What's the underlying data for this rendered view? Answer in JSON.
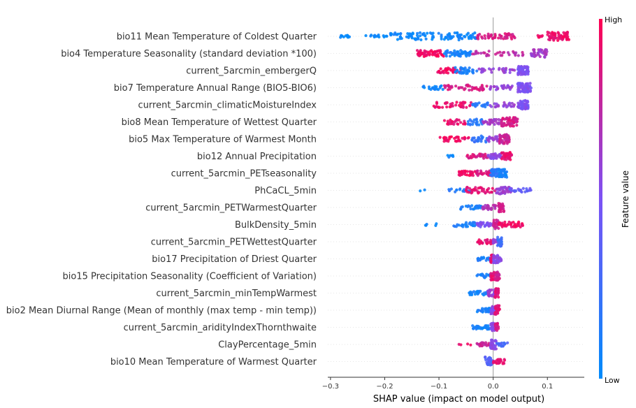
{
  "chart_data": {
    "type": "scatter",
    "subtype": "shap-beeswarm",
    "xlabel": "SHAP value (impact on model output)",
    "xlim": [
      -0.305,
      0.168
    ],
    "xticks": [
      -0.3,
      -0.2,
      -0.1,
      0.0,
      0.1
    ],
    "xtick_labels": [
      "−0.3",
      "−0.2",
      "−0.1",
      "0.0",
      "0.1"
    ],
    "zero_line": true,
    "colorbar": {
      "label": "Feature value",
      "high_label": "High",
      "low_label": "Low",
      "low_color": "#008bfb",
      "mid_color": "#7c52f5",
      "high_color": "#ff0052"
    },
    "features": [
      {
        "name": "bio11 Mean Temperature of Coldest Quarter",
        "clusters": [
          {
            "x": [
              -0.285,
              -0.265
            ],
            "color": 0.02,
            "n": 12,
            "spread": 0.25
          },
          {
            "x": [
              -0.235,
              -0.195
            ],
            "color": 0.03,
            "n": 14,
            "spread": 0.3
          },
          {
            "x": [
              -0.19,
              -0.03
            ],
            "color": 0.05,
            "n": 110,
            "spread": 0.65
          },
          {
            "x": [
              -0.03,
              0.04
            ],
            "color": 0.85,
            "n": 50,
            "spread": 0.5
          },
          {
            "x": [
              0.08,
              0.095
            ],
            "color": 0.95,
            "n": 6,
            "spread": 0.2
          },
          {
            "x": [
              0.1,
              0.14
            ],
            "color": 0.93,
            "n": 60,
            "spread": 0.75
          }
        ]
      },
      {
        "name": "bio4 Temperature Seasonality (standard deviation *100)",
        "clusters": [
          {
            "x": [
              -0.14,
              -0.09
            ],
            "color": 0.95,
            "n": 55,
            "spread": 0.55
          },
          {
            "x": [
              -0.09,
              -0.04
            ],
            "color": 0.1,
            "n": 50,
            "spread": 0.55
          },
          {
            "x": [
              -0.04,
              0.06
            ],
            "color": 0.75,
            "n": 35,
            "spread": 0.45
          },
          {
            "x": [
              0.07,
              0.1
            ],
            "color": 0.65,
            "n": 40,
            "spread": 0.7
          }
        ]
      },
      {
        "name": "current_5arcmin_embergerQ",
        "clusters": [
          {
            "x": [
              -0.105,
              -0.06
            ],
            "color": 0.95,
            "n": 35,
            "spread": 0.45
          },
          {
            "x": [
              -0.07,
              -0.03
            ],
            "color": 0.1,
            "n": 35,
            "spread": 0.55
          },
          {
            "x": [
              -0.03,
              0.04
            ],
            "color": 0.6,
            "n": 30,
            "spread": 0.4
          },
          {
            "x": [
              0.045,
              0.065
            ],
            "color": 0.5,
            "n": 60,
            "spread": 0.75
          }
        ]
      },
      {
        "name": "bio7 Temperature Annual Range (BIO5-BIO6)",
        "clusters": [
          {
            "x": [
              -0.13,
              -0.09
            ],
            "color": 0.05,
            "n": 20,
            "spread": 0.35
          },
          {
            "x": [
              -0.09,
              -0.01
            ],
            "color": 0.85,
            "n": 45,
            "spread": 0.5
          },
          {
            "x": [
              -0.01,
              0.04
            ],
            "color": 0.6,
            "n": 25,
            "spread": 0.4
          },
          {
            "x": [
              0.045,
              0.07
            ],
            "color": 0.5,
            "n": 65,
            "spread": 0.8
          }
        ]
      },
      {
        "name": "current_5arcmin_climaticMoistureIndex",
        "clusters": [
          {
            "x": [
              -0.11,
              -0.04
            ],
            "color": 0.92,
            "n": 40,
            "spread": 0.5
          },
          {
            "x": [
              -0.04,
              -0.01
            ],
            "color": 0.15,
            "n": 20,
            "spread": 0.45
          },
          {
            "x": [
              -0.01,
              0.04
            ],
            "color": 0.6,
            "n": 25,
            "spread": 0.4
          },
          {
            "x": [
              0.045,
              0.065
            ],
            "color": 0.5,
            "n": 55,
            "spread": 0.8
          }
        ]
      },
      {
        "name": "bio8 Mean Temperature of Wettest Quarter",
        "clusters": [
          {
            "x": [
              -0.09,
              -0.05
            ],
            "color": 0.92,
            "n": 25,
            "spread": 0.45
          },
          {
            "x": [
              -0.05,
              -0.02
            ],
            "color": 0.15,
            "n": 25,
            "spread": 0.55
          },
          {
            "x": [
              -0.02,
              0.015
            ],
            "color": 0.65,
            "n": 30,
            "spread": 0.45
          },
          {
            "x": [
              0.015,
              0.045
            ],
            "color": 0.85,
            "n": 60,
            "spread": 0.85
          }
        ]
      },
      {
        "name": "bio5 Max Temperature of Warmest Month",
        "clusters": [
          {
            "x": [
              -0.1,
              -0.04
            ],
            "color": 0.95,
            "n": 35,
            "spread": 0.45
          },
          {
            "x": [
              -0.04,
              -0.01
            ],
            "color": 0.2,
            "n": 25,
            "spread": 0.55
          },
          {
            "x": [
              -0.01,
              0.01
            ],
            "color": 0.6,
            "n": 20,
            "spread": 0.5
          },
          {
            "x": [
              0.01,
              0.03
            ],
            "color": 0.8,
            "n": 55,
            "spread": 0.8
          }
        ]
      },
      {
        "name": "bio12 Annual Precipitation",
        "clusters": [
          {
            "x": [
              -0.085,
              -0.07
            ],
            "color": 0.05,
            "n": 6,
            "spread": 0.2
          },
          {
            "x": [
              -0.05,
              -0.01
            ],
            "color": 0.85,
            "n": 30,
            "spread": 0.4
          },
          {
            "x": [
              -0.01,
              0.015
            ],
            "color": 0.55,
            "n": 30,
            "spread": 0.45
          },
          {
            "x": [
              0.015,
              0.035
            ],
            "color": 0.92,
            "n": 40,
            "spread": 0.7
          }
        ]
      },
      {
        "name": "current_5arcmin_PETseasonality",
        "clusters": [
          {
            "x": [
              -0.065,
              -0.03
            ],
            "color": 0.95,
            "n": 35,
            "spread": 0.4
          },
          {
            "x": [
              -0.03,
              0.0
            ],
            "color": 0.85,
            "n": 30,
            "spread": 0.45
          },
          {
            "x": [
              -0.005,
              0.012
            ],
            "color": 0.15,
            "n": 40,
            "spread": 0.75
          },
          {
            "x": [
              0.012,
              0.025
            ],
            "color": 0.08,
            "n": 35,
            "spread": 0.8
          }
        ]
      },
      {
        "name": "PhCaCL_5min",
        "clusters": [
          {
            "x": [
              -0.135,
              -0.125
            ],
            "color": 0.05,
            "n": 2,
            "spread": 0.1
          },
          {
            "x": [
              -0.085,
              -0.04
            ],
            "color": 0.15,
            "n": 15,
            "spread": 0.3
          },
          {
            "x": [
              -0.05,
              0.005
            ],
            "color": 0.9,
            "n": 40,
            "spread": 0.55
          },
          {
            "x": [
              0.005,
              0.035
            ],
            "color": 0.6,
            "n": 40,
            "spread": 0.65
          },
          {
            "x": [
              0.03,
              0.07
            ],
            "color": 0.4,
            "n": 25,
            "spread": 0.35
          }
        ]
      },
      {
        "name": "current_5arcmin_PETWarmestQuarter",
        "clusters": [
          {
            "x": [
              -0.06,
              -0.02
            ],
            "color": 0.1,
            "n": 25,
            "spread": 0.35
          },
          {
            "x": [
              -0.02,
              0.005
            ],
            "color": 0.7,
            "n": 25,
            "spread": 0.45
          },
          {
            "x": [
              0.01,
              0.02
            ],
            "color": 0.82,
            "n": 30,
            "spread": 0.8
          }
        ]
      },
      {
        "name": "BulkDensity_5min",
        "clusters": [
          {
            "x": [
              -0.13,
              -0.1
            ],
            "color": 0.05,
            "n": 5,
            "spread": 0.2
          },
          {
            "x": [
              -0.075,
              -0.03
            ],
            "color": 0.1,
            "n": 25,
            "spread": 0.4
          },
          {
            "x": [
              -0.03,
              0.0
            ],
            "color": 0.5,
            "n": 30,
            "spread": 0.45
          },
          {
            "x": [
              0.0,
              0.01
            ],
            "color": 0.8,
            "n": 25,
            "spread": 0.85
          },
          {
            "x": [
              0.01,
              0.055
            ],
            "color": 0.95,
            "n": 40,
            "spread": 0.5
          }
        ]
      },
      {
        "name": "current_5arcmin_PETWettestQuarter",
        "clusters": [
          {
            "x": [
              -0.03,
              0.0
            ],
            "color": 0.9,
            "n": 25,
            "spread": 0.45
          },
          {
            "x": [
              0.0,
              0.008
            ],
            "color": 0.6,
            "n": 15,
            "spread": 0.5
          },
          {
            "x": [
              0.008,
              0.016
            ],
            "color": 0.25,
            "n": 25,
            "spread": 0.8
          }
        ]
      },
      {
        "name": "bio17 Precipitation of Driest Quarter",
        "clusters": [
          {
            "x": [
              -0.03,
              -0.005
            ],
            "color": 0.1,
            "n": 20,
            "spread": 0.35
          },
          {
            "x": [
              -0.005,
              0.0
            ],
            "color": 0.9,
            "n": 20,
            "spread": 0.7
          },
          {
            "x": [
              0.0,
              0.015
            ],
            "color": 0.55,
            "n": 35,
            "spread": 0.75
          }
        ]
      },
      {
        "name": "bio15 Precipitation Seasonality (Coefficient of Variation)",
        "clusters": [
          {
            "x": [
              -0.03,
              -0.005
            ],
            "color": 0.1,
            "n": 20,
            "spread": 0.35
          },
          {
            "x": [
              -0.005,
              0.003
            ],
            "color": 0.9,
            "n": 25,
            "spread": 0.75
          },
          {
            "x": [
              0.003,
              0.012
            ],
            "color": 0.8,
            "n": 30,
            "spread": 0.8
          }
        ]
      },
      {
        "name": "current_5arcmin_minTempWarmest",
        "clusters": [
          {
            "x": [
              -0.045,
              -0.01
            ],
            "color": 0.08,
            "n": 25,
            "spread": 0.35
          },
          {
            "x": [
              -0.01,
              0.003
            ],
            "color": 0.6,
            "n": 25,
            "spread": 0.6
          },
          {
            "x": [
              0.003,
              0.01
            ],
            "color": 0.9,
            "n": 30,
            "spread": 0.8
          }
        ]
      },
      {
        "name": "bio2 Mean Diurnal Range (Mean of monthly (max temp - min temp))",
        "clusters": [
          {
            "x": [
              -0.03,
              -0.005
            ],
            "color": 0.1,
            "n": 30,
            "spread": 0.35
          },
          {
            "x": [
              -0.005,
              0.003
            ],
            "color": 0.55,
            "n": 25,
            "spread": 0.7
          },
          {
            "x": [
              0.003,
              0.012
            ],
            "color": 0.88,
            "n": 35,
            "spread": 0.85
          }
        ]
      },
      {
        "name": "current_5arcmin_aridityIndexThornthwaite",
        "clusters": [
          {
            "x": [
              -0.04,
              -0.005
            ],
            "color": 0.08,
            "n": 30,
            "spread": 0.35
          },
          {
            "x": [
              -0.005,
              0.004
            ],
            "color": 0.55,
            "n": 25,
            "spread": 0.8
          },
          {
            "x": [
              0.004,
              0.01
            ],
            "color": 0.85,
            "n": 25,
            "spread": 0.7
          }
        ]
      },
      {
        "name": "ClayPercentage_5min",
        "clusters": [
          {
            "x": [
              -0.07,
              -0.04
            ],
            "color": 0.92,
            "n": 4,
            "spread": 0.15
          },
          {
            "x": [
              -0.03,
              -0.005
            ],
            "color": 0.8,
            "n": 20,
            "spread": 0.35
          },
          {
            "x": [
              -0.005,
              0.006
            ],
            "color": 0.55,
            "n": 35,
            "spread": 0.85
          },
          {
            "x": [
              0.006,
              0.027
            ],
            "color": 0.3,
            "n": 20,
            "spread": 0.35
          }
        ]
      },
      {
        "name": "bio10 Mean Temperature of Warmest Quarter",
        "clusters": [
          {
            "x": [
              -0.015,
              0.0
            ],
            "color": 0.35,
            "n": 35,
            "spread": 0.85
          },
          {
            "x": [
              0.0,
              0.022
            ],
            "color": 0.9,
            "n": 30,
            "spread": 0.4
          }
        ]
      }
    ]
  }
}
